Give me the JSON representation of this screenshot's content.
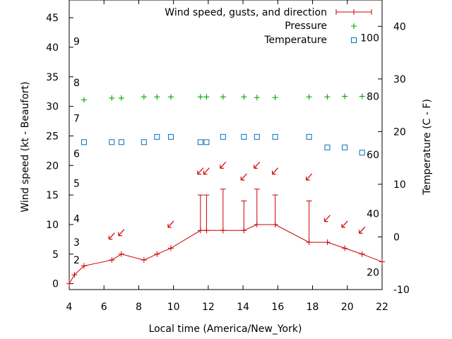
{
  "chart_data": {
    "type": "line",
    "xlabel": "Local time (America/New_York)",
    "ylabel_left": "Wind speed (kt - Beaufort)",
    "ylabel_right": "Temperature (C - F)",
    "xlim": [
      4,
      22
    ],
    "ylim_left": [
      -1,
      48
    ],
    "ylim_right": [
      -10,
      45
    ],
    "x_ticks": [
      "4",
      "6",
      "8",
      "10",
      "12",
      "14",
      "16",
      "18",
      "20",
      "22"
    ],
    "y_ticks_left": [
      "0",
      "5",
      "10",
      "15",
      "20",
      "25",
      "30",
      "35",
      "40",
      "45"
    ],
    "y_ticks_right": [
      "-10",
      "0",
      "10",
      "20",
      "30",
      "40"
    ],
    "beaufort_labels": [
      {
        "label": "2",
        "kt": 4
      },
      {
        "label": "3",
        "kt": 7
      },
      {
        "label": "4",
        "kt": 11
      },
      {
        "label": "5",
        "kt": 17
      },
      {
        "label": "6",
        "kt": 22
      },
      {
        "label": "7",
        "kt": 28
      },
      {
        "label": "8",
        "kt": 34
      },
      {
        "label": "9",
        "kt": 41
      }
    ],
    "fahrenheit_labels": [
      {
        "label": "20",
        "c": -6.7
      },
      {
        "label": "40",
        "c": 4.4
      },
      {
        "label": "60",
        "c": 15.6
      },
      {
        "label": "80",
        "c": 26.7
      },
      {
        "label": "100",
        "c": 37.8
      }
    ],
    "legend": {
      "placement": "top-right",
      "entries": [
        "Wind speed, gusts, and direction",
        "Pressure",
        "Temperature"
      ]
    },
    "colors": {
      "wind": "#cc0000",
      "pressure": "#00aa00",
      "temperature": "#0070c0"
    },
    "wind_speed": {
      "x": [
        4.0,
        4.3,
        4.85,
        6.45,
        7.0,
        8.3,
        9.05,
        9.85,
        11.55,
        11.9,
        12.85,
        14.05,
        14.8,
        15.85,
        17.8,
        18.85,
        19.85,
        20.85,
        22.0
      ],
      "y": [
        0,
        1.5,
        3,
        4,
        5,
        4,
        5,
        6,
        9,
        9,
        9,
        9,
        10,
        10,
        7,
        7,
        6,
        5,
        3.7
      ]
    },
    "gusts": [
      {
        "x": 11.55,
        "low": 9,
        "high": 15
      },
      {
        "x": 11.9,
        "low": 9,
        "high": 15
      },
      {
        "x": 12.85,
        "low": 9,
        "high": 16
      },
      {
        "x": 14.05,
        "low": 9,
        "high": 14
      },
      {
        "x": 14.8,
        "low": 10,
        "high": 16
      },
      {
        "x": 15.85,
        "low": 10,
        "high": 15
      },
      {
        "x": 17.8,
        "low": 7,
        "high": 14
      }
    ],
    "direction_arrows": [
      {
        "x": 6.45,
        "y": 8.0
      },
      {
        "x": 7.0,
        "y": 8.6
      },
      {
        "x": 9.85,
        "y": 10.0
      },
      {
        "x": 11.55,
        "y": 19.0
      },
      {
        "x": 11.9,
        "y": 19.0
      },
      {
        "x": 12.85,
        "y": 20.0
      },
      {
        "x": 14.05,
        "y": 18.0
      },
      {
        "x": 14.8,
        "y": 20.0
      },
      {
        "x": 15.85,
        "y": 19.0
      },
      {
        "x": 17.8,
        "y": 18.0
      },
      {
        "x": 18.85,
        "y": 11.0
      },
      {
        "x": 19.85,
        "y": 10.0
      },
      {
        "x": 20.85,
        "y": 9.0
      }
    ],
    "pressure_markers": {
      "x": [
        4.85,
        6.45,
        7.0,
        8.3,
        9.05,
        9.85,
        11.55,
        11.9,
        12.85,
        14.05,
        14.8,
        15.85,
        17.8,
        18.85,
        19.85,
        20.85
      ],
      "y": [
        31.1,
        31.4,
        31.4,
        31.6,
        31.6,
        31.6,
        31.6,
        31.6,
        31.6,
        31.6,
        31.5,
        31.5,
        31.6,
        31.6,
        31.7,
        31.7
      ]
    },
    "temperature": {
      "x": [
        4.85,
        6.45,
        7.0,
        8.3,
        9.05,
        9.85,
        11.55,
        11.9,
        12.85,
        14.05,
        14.8,
        15.85,
        17.8,
        18.85,
        19.85,
        20.85
      ],
      "y": [
        18,
        18,
        18,
        18,
        19,
        19,
        18,
        18,
        19,
        19,
        19,
        19,
        19,
        17,
        17,
        16
      ]
    }
  }
}
